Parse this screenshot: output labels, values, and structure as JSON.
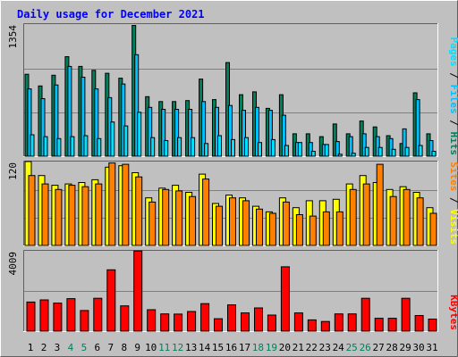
{
  "title": "Daily usage for December 2021",
  "colors": {
    "background": "#c0c0c0",
    "title": "#0000ff",
    "hits": "#00805c",
    "files": "#00c0ff",
    "pages": "#00e0ff",
    "visits": "#ffff00",
    "sites": "#ff8000",
    "kbytes": "#ff0000",
    "weekend_label": "#00805c",
    "weekday_label": "#000000",
    "legend_sep": "#000000"
  },
  "weekend_days": [
    "4",
    "5",
    "11",
    "12",
    "18",
    "19",
    "25",
    "26"
  ],
  "chart_data": [
    {
      "type": "bar",
      "label_parts": [
        {
          "text": "Pages",
          "color_key": "pages"
        },
        {
          "text": " / ",
          "color_key": "legend_sep"
        },
        {
          "text": "Files",
          "color_key": "files"
        },
        {
          "text": " / ",
          "color_key": "legend_sep"
        },
        {
          "text": "Hits",
          "color_key": "hits"
        }
      ],
      "y_max_label": "1354",
      "ylim": [
        0,
        1354
      ],
      "categories": [
        "1",
        "2",
        "3",
        "4",
        "5",
        "6",
        "7",
        "8",
        "9",
        "10",
        "11",
        "12",
        "13",
        "14",
        "15",
        "16",
        "17",
        "18",
        "19",
        "20",
        "21",
        "22",
        "23",
        "24",
        "25",
        "26",
        "27",
        "28",
        "29",
        "30",
        "31"
      ],
      "series": [
        {
          "name": "Hits",
          "color_key": "hits",
          "values": [
            840,
            720,
            830,
            1020,
            920,
            880,
            850,
            800,
            1340,
            610,
            560,
            560,
            570,
            790,
            580,
            960,
            630,
            660,
            490,
            630,
            230,
            230,
            200,
            330,
            230,
            360,
            300,
            210,
            130,
            650,
            230
          ]
        },
        {
          "name": "Files",
          "color_key": "files",
          "values": [
            690,
            590,
            730,
            920,
            810,
            690,
            600,
            740,
            1040,
            500,
            480,
            480,
            480,
            560,
            500,
            520,
            470,
            500,
            470,
            420,
            140,
            140,
            120,
            150,
            200,
            230,
            200,
            180,
            280,
            580,
            160
          ]
        },
        {
          "name": "Pages",
          "color_key": "pages",
          "values": [
            220,
            200,
            180,
            200,
            210,
            180,
            350,
            310,
            450,
            190,
            160,
            190,
            190,
            130,
            210,
            170,
            190,
            140,
            170,
            110,
            140,
            50,
            120,
            20,
            30,
            90,
            90,
            70,
            90,
            110,
            50
          ]
        }
      ]
    },
    {
      "type": "bar",
      "label_parts": [
        {
          "text": "Sites",
          "color_key": "sites"
        },
        {
          "text": " / ",
          "color_key": "legend_sep"
        },
        {
          "text": "Visits",
          "color_key": "visits"
        }
      ],
      "y_max_label": "120",
      "ylim": [
        0,
        120
      ],
      "categories": [
        "1",
        "2",
        "3",
        "4",
        "5",
        "6",
        "7",
        "8",
        "9",
        "10",
        "11",
        "12",
        "13",
        "14",
        "15",
        "16",
        "17",
        "18",
        "19",
        "20",
        "21",
        "22",
        "23",
        "24",
        "25",
        "26",
        "27",
        "28",
        "29",
        "30",
        "31"
      ],
      "series": [
        {
          "name": "Visits",
          "color_key": "visits",
          "values": [
            120,
            100,
            86,
            88,
            90,
            94,
            112,
            114,
            104,
            68,
            82,
            86,
            76,
            102,
            60,
            72,
            68,
            56,
            48,
            68,
            54,
            64,
            64,
            66,
            88,
            100,
            90,
            80,
            84,
            76,
            54
          ]
        },
        {
          "name": "Sites",
          "color_key": "sites",
          "values": [
            100,
            88,
            80,
            86,
            84,
            88,
            118,
            116,
            98,
            62,
            80,
            78,
            70,
            95,
            56,
            68,
            64,
            52,
            46,
            62,
            44,
            42,
            48,
            48,
            80,
            88,
            116,
            70,
            80,
            68,
            46
          ]
        }
      ]
    },
    {
      "type": "bar",
      "label_parts": [
        {
          "text": "KBytes",
          "color_key": "kbytes"
        }
      ],
      "y_max_label": "4009",
      "ylim": [
        0,
        4009
      ],
      "categories": [
        "1",
        "2",
        "3",
        "4",
        "5",
        "6",
        "7",
        "8",
        "9",
        "10",
        "11",
        "12",
        "13",
        "14",
        "15",
        "16",
        "17",
        "18",
        "19",
        "20",
        "21",
        "22",
        "23",
        "24",
        "25",
        "26",
        "27",
        "28",
        "29",
        "30",
        "31"
      ],
      "series": [
        {
          "name": "KBytes",
          "color_key": "kbytes",
          "values": [
            1450,
            1560,
            1400,
            1620,
            1030,
            1640,
            3060,
            1260,
            4000,
            1070,
            860,
            850,
            980,
            1370,
            620,
            1310,
            910,
            1160,
            800,
            3210,
            910,
            560,
            480,
            860,
            860,
            1640,
            640,
            640,
            1640,
            780,
            600
          ]
        }
      ]
    }
  ]
}
